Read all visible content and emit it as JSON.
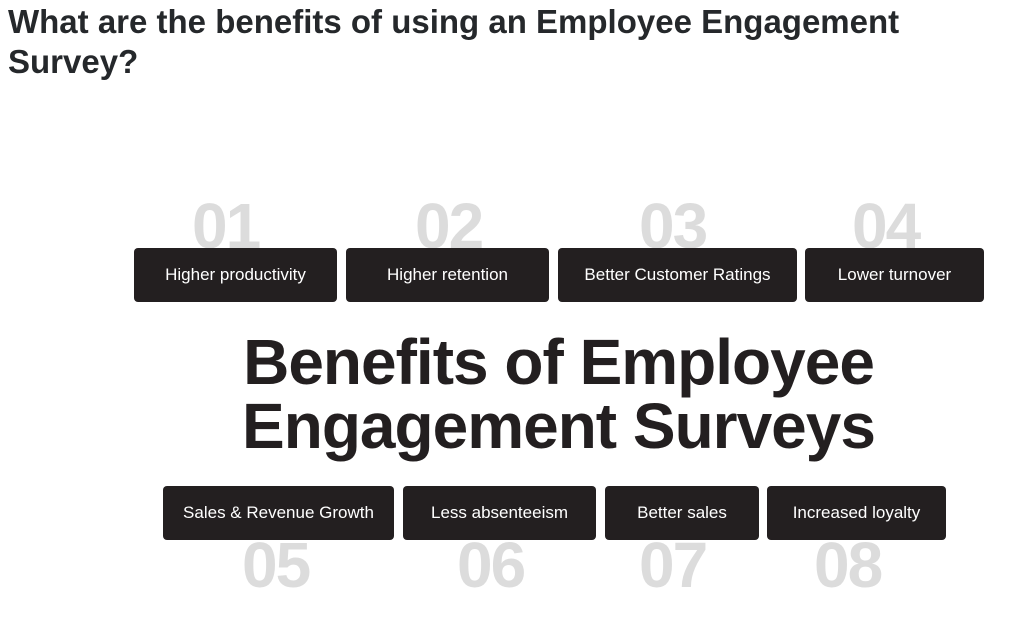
{
  "page_title": "What are the benefits of using an Employee Engagement Survey?",
  "infographic": {
    "heading_line1": "Benefits of Employee",
    "heading_line2": "Engagement Surveys",
    "benefits": [
      {
        "number": "01",
        "label": "Higher productivity"
      },
      {
        "number": "02",
        "label": "Higher retention"
      },
      {
        "number": "03",
        "label": "Better Customer Ratings"
      },
      {
        "number": "04",
        "label": "Lower turnover"
      },
      {
        "number": "05",
        "label": "Sales & Revenue Growth"
      },
      {
        "number": "06",
        "label": "Less absenteeism"
      },
      {
        "number": "07",
        "label": "Better sales"
      },
      {
        "number": "08",
        "label": "Increased loyalty"
      }
    ],
    "colors": {
      "box": "#231f20",
      "number": "#dcdcdc",
      "text": "#ffffff"
    }
  }
}
